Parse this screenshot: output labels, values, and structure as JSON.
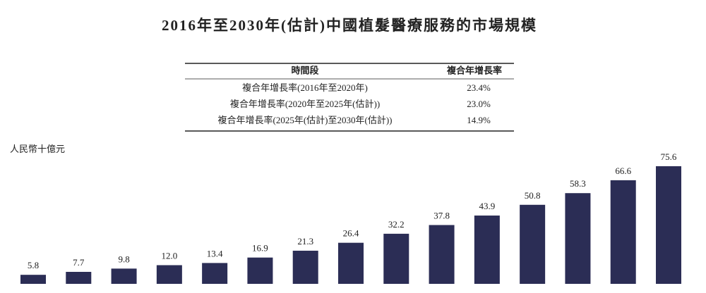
{
  "chart_data": {
    "type": "bar",
    "title": "2016年至2030年(估計)中國植髮醫療服務的市場規模",
    "unit_label": "人民幣十億元",
    "categories": [
      null,
      null,
      null,
      null,
      null,
      null,
      null,
      null,
      null,
      null,
      null,
      null,
      null,
      null,
      null
    ],
    "values": [
      5.8,
      7.7,
      9.8,
      12.0,
      13.4,
      16.9,
      21.3,
      26.4,
      32.2,
      37.8,
      43.9,
      50.8,
      58.3,
      66.6,
      75.6
    ],
    "value_labels": [
      "5.8",
      "7.7",
      "9.8",
      "12.0",
      "13.4",
      "16.9",
      "21.3",
      "26.4",
      "32.2",
      "37.8",
      "43.9",
      "50.8",
      "58.3",
      "66.6",
      "75.6"
    ],
    "color": "#2b2d55"
  },
  "table": {
    "header": [
      "時間段",
      "複合年增長率"
    ],
    "rows": [
      [
        "複合年增長率(2016年至2020年)",
        "23.4%"
      ],
      [
        "複合年增長率(2020年至2025年(估計))",
        "23.0%"
      ],
      [
        "複合年增長率(2025年(估計)至2030年(估計))",
        "14.9%"
      ]
    ]
  }
}
